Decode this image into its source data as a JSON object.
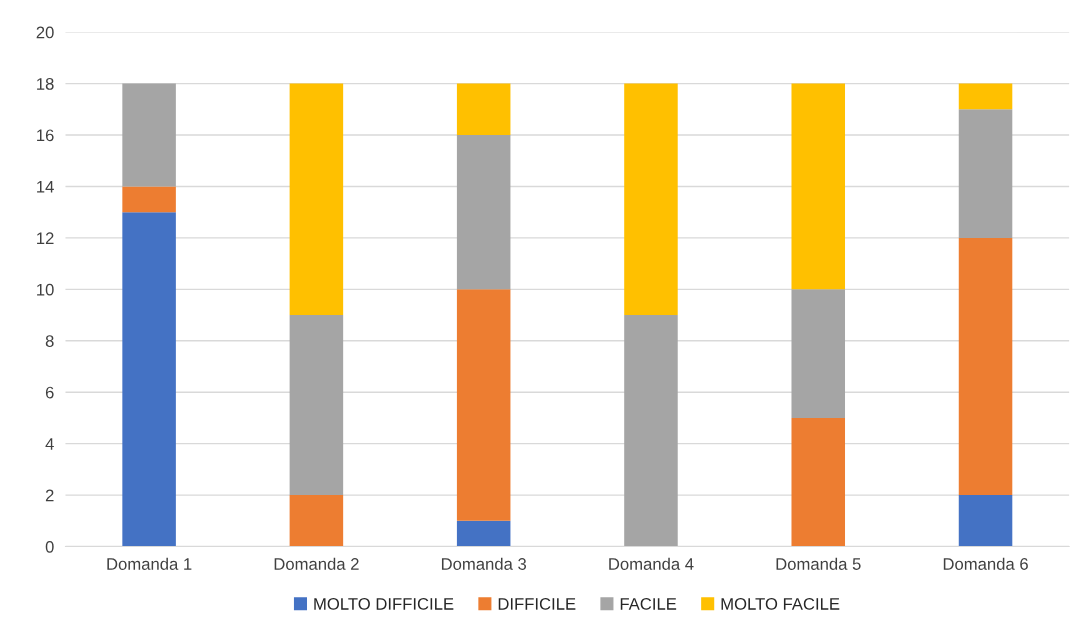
{
  "chart_data": {
    "type": "bar",
    "stacked": true,
    "categories": [
      "Domanda 1",
      "Domanda 2",
      "Domanda 3",
      "Domanda 4",
      "Domanda 5",
      "Domanda 6"
    ],
    "series": [
      {
        "name": "MOLTO DIFFICILE",
        "color": "#4472c4",
        "values": [
          13,
          0,
          1,
          0,
          0,
          2
        ]
      },
      {
        "name": "DIFFICILE",
        "color": "#ed7d31",
        "values": [
          1,
          2,
          9,
          0,
          5,
          10
        ]
      },
      {
        "name": "FACILE",
        "color": "#a5a5a5",
        "values": [
          4,
          7,
          6,
          9,
          5,
          5
        ]
      },
      {
        "name": "MOLTO FACILE",
        "color": "#ffc000",
        "values": [
          0,
          9,
          2,
          9,
          8,
          1
        ]
      }
    ],
    "ylim": [
      0,
      20
    ],
    "yticks": [
      0,
      2,
      4,
      6,
      8,
      10,
      12,
      14,
      16,
      18,
      20
    ],
    "grid": "y",
    "legend": "bottom"
  }
}
